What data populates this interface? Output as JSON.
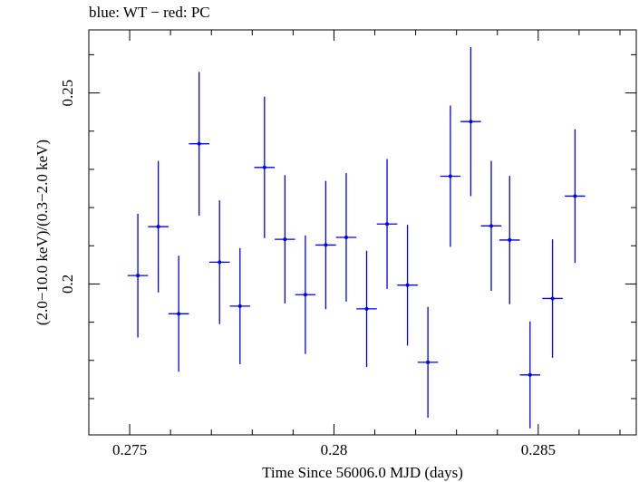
{
  "chart_data": {
    "type": "scatter",
    "title": "blue: WT − red: PC",
    "xlabel": "Time Since 56006.0 MJD (days)",
    "ylabel": "(2.0−10.0 keV)/(0.3−2.0 keV)",
    "xlim": [
      0.274,
      0.2874
    ],
    "ylim": [
      0.1605,
      0.2665
    ],
    "xticks": [
      0.275,
      0.28,
      0.285
    ],
    "xtick_labels": [
      "0.275",
      "0.28",
      "0.285"
    ],
    "yticks": [
      0.2,
      0.25
    ],
    "ytick_labels": [
      "0.2",
      "0.25"
    ],
    "grid": false,
    "series": [
      {
        "color": "#0000ee",
        "points": [
          {
            "x": 0.2752,
            "xerr": 0.00025,
            "y": 0.2022,
            "yerr": 0.0162
          },
          {
            "x": 0.2757,
            "xerr": 0.00025,
            "y": 0.215,
            "yerr": 0.0172
          },
          {
            "x": 0.2762,
            "xerr": 0.00025,
            "y": 0.1922,
            "yerr": 0.0152
          },
          {
            "x": 0.2767,
            "xerr": 0.00025,
            "y": 0.2367,
            "yerr": 0.0188
          },
          {
            "x": 0.2772,
            "xerr": 0.00025,
            "y": 0.2057,
            "yerr": 0.0162
          },
          {
            "x": 0.2777,
            "xerr": 0.00025,
            "y": 0.1942,
            "yerr": 0.0152
          },
          {
            "x": 0.2783,
            "xerr": 0.00025,
            "y": 0.2305,
            "yerr": 0.0185
          },
          {
            "x": 0.2788,
            "xerr": 0.00025,
            "y": 0.2117,
            "yerr": 0.0168
          },
          {
            "x": 0.2793,
            "xerr": 0.00025,
            "y": 0.1972,
            "yerr": 0.0155
          },
          {
            "x": 0.2798,
            "xerr": 0.00025,
            "y": 0.2102,
            "yerr": 0.0168
          },
          {
            "x": 0.2803,
            "xerr": 0.00025,
            "y": 0.2122,
            "yerr": 0.0168
          },
          {
            "x": 0.2808,
            "xerr": 0.00025,
            "y": 0.1935,
            "yerr": 0.0152
          },
          {
            "x": 0.2813,
            "xerr": 0.00025,
            "y": 0.2157,
            "yerr": 0.017
          },
          {
            "x": 0.2818,
            "xerr": 0.00025,
            "y": 0.1997,
            "yerr": 0.0158
          },
          {
            "x": 0.2823,
            "xerr": 0.00025,
            "y": 0.1795,
            "yerr": 0.0145
          },
          {
            "x": 0.28285,
            "xerr": 0.00025,
            "y": 0.2282,
            "yerr": 0.0185
          },
          {
            "x": 0.28335,
            "xerr": 0.00025,
            "y": 0.2425,
            "yerr": 0.0195
          },
          {
            "x": 0.28385,
            "xerr": 0.00025,
            "y": 0.2152,
            "yerr": 0.017
          },
          {
            "x": 0.2843,
            "xerr": 0.00025,
            "y": 0.2115,
            "yerr": 0.0168
          },
          {
            "x": 0.2848,
            "xerr": 0.00025,
            "y": 0.1762,
            "yerr": 0.014
          },
          {
            "x": 0.28535,
            "xerr": 0.00025,
            "y": 0.1962,
            "yerr": 0.0155
          },
          {
            "x": 0.2859,
            "xerr": 0.00025,
            "y": 0.223,
            "yerr": 0.0175
          }
        ]
      }
    ]
  }
}
